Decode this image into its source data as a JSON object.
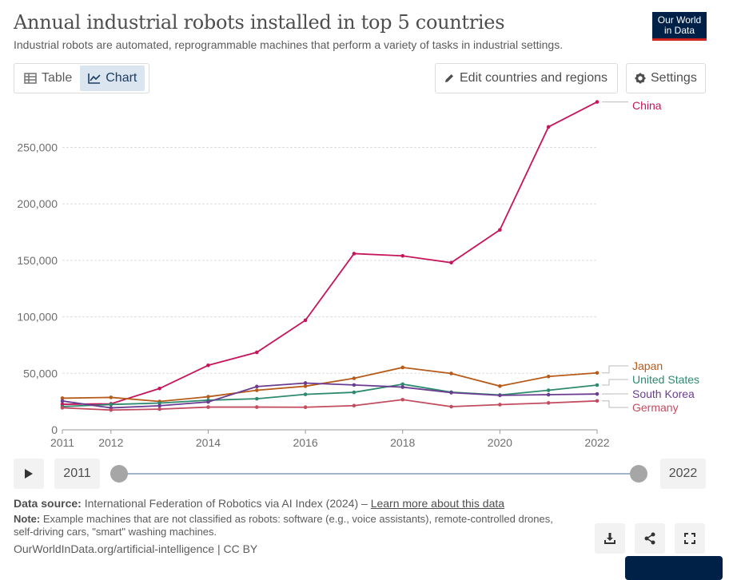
{
  "header": {
    "title": "Annual industrial robots installed in top 5 countries",
    "subtitle": "Industrial robots are automated, reprogrammable machines that perform a variety of tasks in industrial settings.",
    "logo_line1": "Our World",
    "logo_line2": "in Data"
  },
  "tabs": [
    {
      "label": "Table",
      "icon": "table-icon"
    },
    {
      "label": "Chart",
      "icon": "line-chart-icon",
      "active": true
    }
  ],
  "controls": {
    "edit_label": "Edit countries and regions",
    "settings_label": "Settings"
  },
  "timeline": {
    "start_label": "2011",
    "end_label": "2022"
  },
  "footer": {
    "source_label": "Data source:",
    "source_text": "International Federation of Robotics via AI Index (2024) –",
    "source_link": "Learn more about this data",
    "note_label": "Note:",
    "note_text": "Example machines that are not classified as robots: software (e.g., voice assistants), remote-controlled drones, self-driving cars, \"smart\" washing machines.",
    "credit": "OurWorldInData.org/artificial-intelligence | CC BY"
  },
  "colors": {
    "China": "#c5165b",
    "Japan": "#b65b1a",
    "United States": "#2e8a6e",
    "South Korea": "#6b3d91",
    "Germany": "#c24d60"
  },
  "chart_data": {
    "type": "line",
    "title": "Annual industrial robots installed in top 5 countries",
    "xlabel": "",
    "ylabel": "",
    "x": [
      2011,
      2012,
      2013,
      2014,
      2015,
      2016,
      2017,
      2018,
      2019,
      2020,
      2021,
      2022
    ],
    "xticks": [
      "2011",
      "2012",
      "2014",
      "2016",
      "2018",
      "2020",
      "2022"
    ],
    "yticks": [
      0,
      50000,
      100000,
      150000,
      200000,
      250000
    ],
    "ytick_labels": [
      "0",
      "50,000",
      "100,000",
      "150,000",
      "200,000",
      "250,000"
    ],
    "ylim": [
      0,
      290000
    ],
    "grid": "horizontal-dashed",
    "legend": "right-end-labels",
    "series": [
      {
        "name": "China",
        "values": [
          22600,
          23000,
          36600,
          57100,
          68600,
          97000,
          156000,
          154000,
          148000,
          177000,
          268200,
          290300
        ]
      },
      {
        "name": "Japan",
        "values": [
          28000,
          28700,
          25100,
          29300,
          35000,
          38600,
          45600,
          55200,
          49900,
          38700,
          47200,
          50400
        ]
      },
      {
        "name": "United States",
        "values": [
          20600,
          22400,
          23700,
          26200,
          27500,
          31400,
          33200,
          40400,
          33300,
          30800,
          35000,
          39600
        ]
      },
      {
        "name": "South Korea",
        "values": [
          25500,
          19400,
          21300,
          24700,
          38300,
          41400,
          39700,
          37800,
          32900,
          30500,
          31100,
          31700
        ]
      },
      {
        "name": "Germany",
        "values": [
          19500,
          17500,
          18300,
          20100,
          20100,
          20000,
          21400,
          26700,
          20500,
          22300,
          23800,
          25600
        ]
      }
    ]
  }
}
